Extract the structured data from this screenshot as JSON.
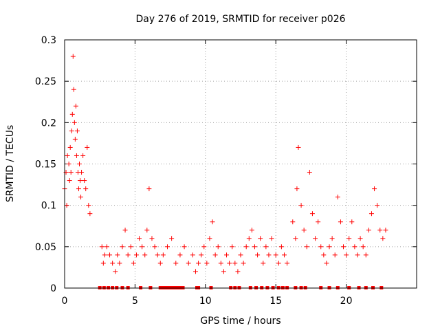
{
  "chart_data": {
    "type": "scatter",
    "title": "Day 276 of 2019, SRMTID for receiver p026",
    "xlabel": "GPS time / hours",
    "ylabel": "SRMTID / TECUs",
    "xlim": [
      0,
      25
    ],
    "ylim": [
      0,
      0.3
    ],
    "xticks": [
      0,
      5,
      10,
      15,
      20
    ],
    "yticks": [
      0,
      0.05,
      0.1,
      0.15,
      0.2,
      0.25,
      0.3
    ],
    "xtick_labels": [
      "0",
      "5",
      "10",
      "15",
      "20"
    ],
    "ytick_labels": [
      "0",
      "0.05",
      "0.1",
      "0.15",
      "0.2",
      "0.25",
      "0.3"
    ],
    "grid": true,
    "marker": "+",
    "color": "#ff0000",
    "series": [
      {
        "name": "SRMTID",
        "x": [
          0.0,
          0.1,
          0.15,
          0.2,
          0.3,
          0.35,
          0.4,
          0.45,
          0.5,
          0.55,
          0.6,
          0.65,
          0.7,
          0.75,
          0.8,
          0.85,
          0.9,
          0.95,
          1.0,
          1.05,
          1.1,
          1.15,
          1.2,
          1.3,
          1.4,
          1.5,
          1.6,
          1.7,
          1.8,
          2.65,
          2.75,
          2.85,
          3.0,
          3.2,
          3.4,
          3.6,
          3.75,
          3.9,
          4.1,
          4.3,
          4.5,
          4.7,
          4.9,
          5.1,
          5.3,
          5.5,
          5.7,
          5.85,
          6.0,
          6.2,
          6.4,
          6.6,
          6.8,
          7.0,
          7.3,
          7.6,
          7.9,
          8.2,
          8.5,
          8.8,
          9.1,
          9.3,
          9.5,
          9.7,
          9.9,
          10.1,
          10.3,
          10.5,
          10.7,
          10.9,
          11.1,
          11.3,
          11.5,
          11.7,
          11.9,
          12.1,
          12.3,
          12.5,
          12.7,
          12.9,
          13.1,
          13.3,
          13.5,
          13.7,
          13.9,
          14.1,
          14.3,
          14.5,
          14.7,
          15.0,
          15.2,
          15.4,
          15.6,
          15.8,
          16.2,
          16.4,
          16.5,
          16.6,
          16.8,
          17.0,
          17.2,
          17.4,
          17.6,
          17.8,
          18.0,
          18.2,
          18.4,
          18.6,
          18.8,
          19.0,
          19.2,
          19.4,
          19.6,
          19.8,
          20.0,
          20.2,
          20.4,
          20.6,
          20.8,
          21.0,
          21.2,
          21.4,
          21.6,
          21.8,
          22.0,
          22.2,
          22.4,
          22.6,
          22.8
        ],
        "y": [
          0.12,
          0.14,
          0.1,
          0.16,
          0.15,
          0.13,
          0.17,
          0.14,
          0.19,
          0.21,
          0.28,
          0.24,
          0.2,
          0.18,
          0.22,
          0.16,
          0.19,
          0.14,
          0.12,
          0.15,
          0.13,
          0.11,
          0.14,
          0.16,
          0.13,
          0.12,
          0.17,
          0.1,
          0.09,
          0.05,
          0.03,
          0.04,
          0.05,
          0.04,
          0.03,
          0.02,
          0.04,
          0.03,
          0.05,
          0.07,
          0.04,
          0.05,
          0.03,
          0.04,
          0.06,
          0.05,
          0.04,
          0.07,
          0.12,
          0.06,
          0.05,
          0.04,
          0.03,
          0.04,
          0.05,
          0.06,
          0.03,
          0.04,
          0.05,
          0.03,
          0.04,
          0.02,
          0.03,
          0.04,
          0.05,
          0.03,
          0.06,
          0.08,
          0.04,
          0.05,
          0.03,
          0.02,
          0.04,
          0.03,
          0.05,
          0.03,
          0.02,
          0.04,
          0.03,
          0.05,
          0.06,
          0.07,
          0.05,
          0.04,
          0.06,
          0.03,
          0.05,
          0.04,
          0.06,
          0.04,
          0.03,
          0.05,
          0.04,
          0.03,
          0.08,
          0.06,
          0.12,
          0.17,
          0.1,
          0.07,
          0.05,
          0.14,
          0.09,
          0.06,
          0.08,
          0.05,
          0.04,
          0.03,
          0.05,
          0.06,
          0.04,
          0.11,
          0.08,
          0.05,
          0.04,
          0.06,
          0.08,
          0.05,
          0.04,
          0.06,
          0.05,
          0.04,
          0.07,
          0.09,
          0.12,
          0.1,
          0.07,
          0.06,
          0.07
        ]
      }
    ],
    "gap_markers_x": [
      2.5,
      2.8,
      3.1,
      3.4,
      3.7,
      4.1,
      4.5,
      5.4,
      6.1,
      6.8,
      7.0,
      7.2,
      7.4,
      7.6,
      7.8,
      8.0,
      8.2,
      8.4,
      9.4,
      9.5,
      10.4,
      11.8,
      12.1,
      12.4,
      13.2,
      13.6,
      14.0,
      14.4,
      14.8,
      15.2,
      15.5,
      15.8,
      16.4,
      16.8,
      17.1,
      18.2,
      18.8,
      19.4,
      20.2,
      20.9,
      21.4,
      21.9,
      22.5
    ]
  }
}
